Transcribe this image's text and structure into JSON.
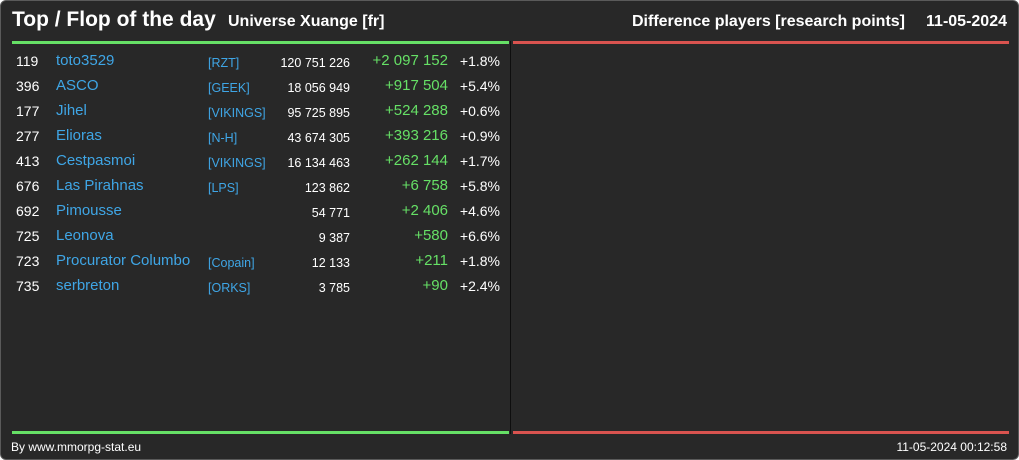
{
  "header": {
    "title": "Top / Flop of the day",
    "universe": "Universe Xuange [fr]",
    "metric": "Difference players [research points]",
    "date": "11-05-2024"
  },
  "colors": {
    "top_accent": "#66e066",
    "flop_accent": "#d9534f",
    "link": "#3fa6e6",
    "background": "#282828"
  },
  "top_list": [
    {
      "rank": "119",
      "name": "toto3529",
      "alliance": "[RZT]",
      "points": "120 751 226",
      "diff": "+2 097 152",
      "pct": "+1.8%"
    },
    {
      "rank": "396",
      "name": "ASCO",
      "alliance": "[GEEK]",
      "points": "18 056 949",
      "diff": "+917 504",
      "pct": "+5.4%"
    },
    {
      "rank": "177",
      "name": "Jihel",
      "alliance": "[VIKINGS]",
      "points": "95 725 895",
      "diff": "+524 288",
      "pct": "+0.6%"
    },
    {
      "rank": "277",
      "name": "Elioras",
      "alliance": "[N-H]",
      "points": "43 674 305",
      "diff": "+393 216",
      "pct": "+0.9%"
    },
    {
      "rank": "413",
      "name": "Cestpasmoi",
      "alliance": "[VIKINGS]",
      "points": "16 134 463",
      "diff": "+262 144",
      "pct": "+1.7%"
    },
    {
      "rank": "676",
      "name": "Las Pirahnas",
      "alliance": "[LPS]",
      "points": "123 862",
      "diff": "+6 758",
      "pct": "+5.8%"
    },
    {
      "rank": "692",
      "name": "Pimousse",
      "alliance": "",
      "points": "54 771",
      "diff": "+2 406",
      "pct": "+4.6%"
    },
    {
      "rank": "725",
      "name": "Leonova",
      "alliance": "",
      "points": "9 387",
      "diff": "+580",
      "pct": "+6.6%"
    },
    {
      "rank": "723",
      "name": "Procurator Columbo",
      "alliance": "[Copain]",
      "points": "12 133",
      "diff": "+211",
      "pct": "+1.8%"
    },
    {
      "rank": "735",
      "name": "serbreton",
      "alliance": "[ORKS]",
      "points": "3 785",
      "diff": "+90",
      "pct": "+2.4%"
    }
  ],
  "flop_list": [],
  "footer": {
    "credit": "By www.mmorpg-stat.eu",
    "timestamp": "11-05-2024 00:12:58"
  }
}
